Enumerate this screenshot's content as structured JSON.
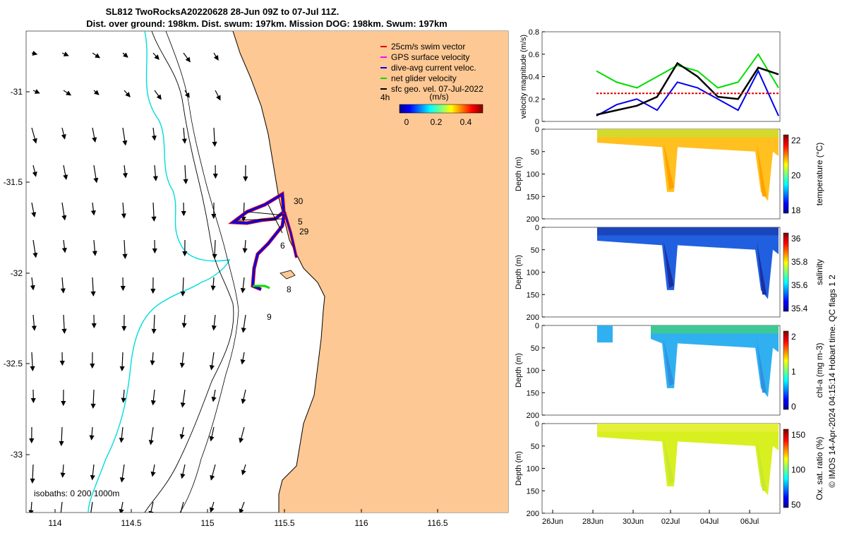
{
  "title": {
    "line1": "SL812 TwoRocksA20220628 28-Jun 09Z to 07-Jul 11Z.",
    "line2": "Dist. over ground: 198km. Dist. swum: 197km. Mission DOG: 198km. Swum: 197km"
  },
  "map": {
    "lon_ticks": [
      "114",
      "114.5",
      "115",
      "115.5",
      "116",
      "116.5"
    ],
    "lat_ticks": [
      "-31",
      "-31.5",
      "-32",
      "-32.5",
      "-33"
    ],
    "legend": [
      {
        "label": "25cm/s swim vector",
        "color": "#e00000"
      },
      {
        "label": "GPS surface velocity",
        "color": "#ff00ff"
      },
      {
        "label": "dive-avg current veloc.",
        "color": "#0000ee"
      },
      {
        "label": "net glider velocity",
        "color": "#00dd00"
      },
      {
        "label": "sfc geo. vel. 07-Jul-2022",
        "color": "#000000"
      }
    ],
    "colorbar": {
      "label": "(m/s)",
      "ticks": [
        "0",
        "0.2",
        "0.4"
      ],
      "prefix": "4h"
    },
    "isobaths_label": "isobaths: 0   200 1000m",
    "day_labels": [
      "30",
      "5",
      "29",
      "6",
      "8",
      "9"
    ],
    "colors": {
      "land": "#fdc893",
      "sea": "#ffffff",
      "isobath200": "#00dddd",
      "coast": "#000000"
    }
  },
  "chart_data": [
    {
      "type": "line",
      "ylabel": "velocity magnitude (m/s)",
      "ylim": [
        0,
        0.8
      ],
      "yticks": [
        "0",
        "0.2",
        "0.4",
        "0.6",
        "0.8"
      ],
      "x": [
        "28-Jun",
        "29-Jun",
        "30-Jun",
        "01-Jul",
        "02-Jul",
        "03-Jul",
        "04-Jul",
        "05-Jul",
        "06-Jul",
        "07-Jul"
      ],
      "series": [
        {
          "name": "net glider velocity",
          "color": "#00dd00",
          "values": [
            0.45,
            0.35,
            0.3,
            0.4,
            0.5,
            0.45,
            0.3,
            0.35,
            0.6,
            0.3
          ]
        },
        {
          "name": "dive-avg current veloc.",
          "color": "#0000ee",
          "values": [
            0.05,
            0.15,
            0.2,
            0.1,
            0.35,
            0.3,
            0.2,
            0.1,
            0.45,
            0.05
          ]
        },
        {
          "name": "sfc geo. vel. 07-Jul-2022",
          "color": "#000000",
          "values": [
            0.06,
            0.1,
            0.14,
            0.22,
            0.52,
            0.4,
            0.22,
            0.2,
            0.48,
            0.42
          ]
        },
        {
          "name": "25cm/s swim vector",
          "color": "#e00000",
          "values": [
            0.25,
            0.25,
            0.25,
            0.25,
            0.25,
            0.25,
            0.25,
            0.25,
            0.25,
            0.25
          ]
        }
      ]
    },
    {
      "type": "heatmap",
      "ylabel": "Depth (m)",
      "cbar_label": "temperature (°C)",
      "cbar_ticks": [
        "18",
        "20",
        "22"
      ],
      "ylim": [
        200,
        0
      ]
    },
    {
      "type": "heatmap",
      "ylabel": "Depth (m)",
      "cbar_label": "salinity",
      "cbar_ticks": [
        "35.4",
        "35.6",
        "35.8",
        "36"
      ],
      "ylim": [
        200,
        0
      ]
    },
    {
      "type": "heatmap",
      "ylabel": "Depth (m)",
      "cbar_label": "chl-a (mg m-3)",
      "cbar_ticks": [
        "0",
        "1",
        "2"
      ],
      "ylim": [
        200,
        0
      ]
    },
    {
      "type": "heatmap",
      "ylabel": "Depth (m)",
      "cbar_label": "Ox. sat. ratio (%)",
      "cbar_ticks": [
        "50",
        "100",
        "150"
      ],
      "ylim": [
        200,
        0
      ]
    }
  ],
  "xaxis_dates": [
    "26Jun",
    "28Jun",
    "30Jun",
    "02Jul",
    "04Jul",
    "06Jul"
  ],
  "depth_ticks": [
    "0",
    "50",
    "100",
    "150",
    "200"
  ],
  "side_text": "© IMOS 14-Apr-2024 04:15:14 Hobart time. QC flags 1  2"
}
